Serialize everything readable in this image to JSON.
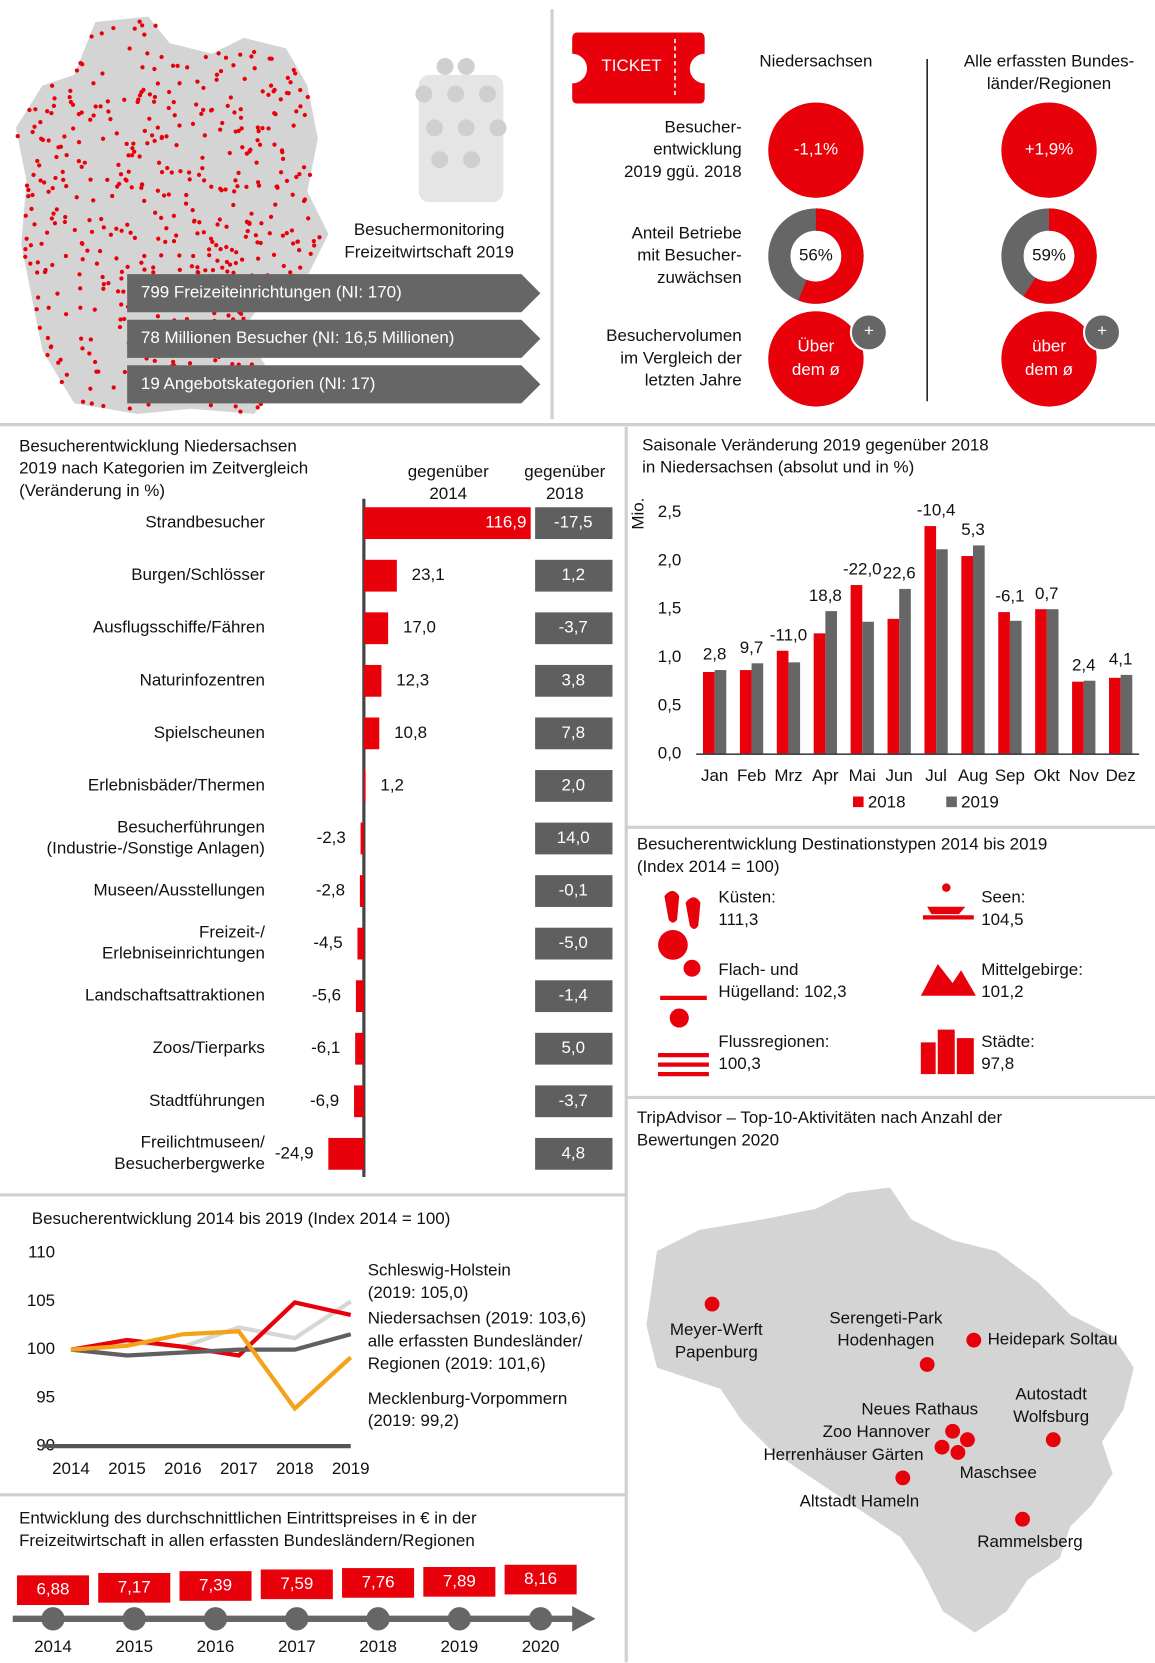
{
  "overview": {
    "title": [
      "Besuchermonitoring",
      "Freizeitwirtschaft 2019"
    ],
    "facts": [
      "799 Freizeiteinrichtungen (NI: 170)",
      "78 Millionen Besucher (NI: 16,5 Millionen)",
      "19 Angebotskategorien (NI: 17)"
    ]
  },
  "comparison": {
    "ticket": "TICKET",
    "columns": [
      [
        "Niedersachsen"
      ],
      [
        "Alle erfassten Bundes-",
        "länder/Regionen"
      ]
    ],
    "rows": [
      {
        "label": [
          "Besucher-",
          "entwicklung",
          "2019 ggü. 2018"
        ],
        "values": [
          "-1,1%",
          "+1,9%"
        ]
      },
      {
        "label": [
          "Anteil Betriebe",
          "mit Besucher-",
          "zuwächsen"
        ],
        "values": [
          56,
          59
        ],
        "value_labels": [
          "56%",
          "59%"
        ]
      },
      {
        "label": [
          "Besuchervolumen",
          "im Vergleich der",
          "letzten Jahre"
        ],
        "values": [
          [
            "Über",
            "dem ø"
          ],
          [
            "über",
            "dem ø"
          ]
        ],
        "badge": "+"
      }
    ]
  },
  "chart_data": [
    {
      "type": "barh",
      "title": [
        "Besucherentwicklung Niedersachsen",
        "2019 nach Kategorien im Zeitvergleich",
        "(Veränderung in %)"
      ],
      "categories": [
        "Strandbesucher",
        "Burgen/Schlösser",
        "Ausflugsschiffe/Fähren",
        "Naturinfozentren",
        "Spielscheunen",
        "Erlebnisbäder/Thermen",
        [
          "Besucherführungen",
          "(Industrie-/Sonstige Anlagen)"
        ],
        "Museen/Ausstellungen",
        [
          "Freizeit-/",
          "Erlebniseinrichtungen"
        ],
        "Landschaftsattraktionen",
        "Zoos/Tierparks",
        "Stadtführungen",
        [
          "Freilichtmuseen/",
          "Besucherbergwerke"
        ]
      ],
      "series": [
        {
          "name": [
            "gegenüber",
            "2014"
          ],
          "color": "#e8000b",
          "values": [
            116.9,
            23.1,
            17.0,
            12.3,
            10.8,
            1.2,
            -2.3,
            -2.8,
            -4.5,
            -5.6,
            -6.1,
            -6.9,
            -24.9
          ],
          "value_labels": [
            "116,9",
            "23,1",
            "17,0",
            "12,3",
            "10,8",
            "1,2",
            "-2,3",
            "-2,8",
            "-4,5",
            "-5,6",
            "-6,1",
            "-6,9",
            "-24,9"
          ]
        }
      ],
      "xlim": [
        -30,
        120
      ],
      "comparison": {
        "name": [
          "gegenüber",
          "2018"
        ],
        "color": "#5f5f5f",
        "labels": [
          "-17,5",
          "1,2",
          "-3,7",
          "3,8",
          "7,8",
          "2,0",
          "14,0",
          "-0,1",
          "-5,0",
          "-1,4",
          "5,0",
          "-3,7",
          "4,8"
        ]
      }
    },
    {
      "type": "groupedbar",
      "title": [
        "Saisonale Veränderung 2019 gegenüber 2018",
        "in Niedersachsen (absolut und in %)"
      ],
      "ylabel": "Mio.",
      "categories": [
        "Jan",
        "Feb",
        "Mrz",
        "Apr",
        "Mai",
        "Jun",
        "Jul",
        "Aug",
        "Sep",
        "Okt",
        "Nov",
        "Dez"
      ],
      "series": [
        {
          "name": "2018",
          "color": "#e8000b",
          "values": [
            0.85,
            0.87,
            1.07,
            1.25,
            1.75,
            1.4,
            2.36,
            2.05,
            1.47,
            1.5,
            0.75,
            0.79
          ]
        },
        {
          "name": "2019",
          "color": "#666666",
          "values": [
            0.87,
            0.94,
            0.95,
            1.48,
            1.37,
            1.71,
            2.12,
            2.16,
            1.38,
            1.5,
            0.76,
            0.82
          ]
        }
      ],
      "annotations": [
        "2,8",
        "9,7",
        "-11,0",
        "18,8",
        "-22,0",
        "22,6",
        "-10,4",
        "5,3",
        "-6,1",
        "0,7",
        "2,4",
        "4,1"
      ],
      "ylim": [
        0,
        2.5
      ],
      "yticks": [
        {
          "value": 0,
          "label": "0,0"
        },
        {
          "value": 0.5,
          "label": "0,5"
        },
        {
          "value": 1,
          "label": "1,0"
        },
        {
          "value": 1.5,
          "label": "1,5"
        },
        {
          "value": 2,
          "label": "2,0"
        },
        {
          "value": 2.5,
          "label": "2,5"
        }
      ],
      "legend": "bottom"
    },
    {
      "type": "line",
      "title": "Besucherentwicklung 2014 bis 2019 (Index 2014 = 100)",
      "x": [
        2014,
        2015,
        2016,
        2017,
        2018,
        2019
      ],
      "xlim": [
        2014,
        2019
      ],
      "xticks": [
        2014,
        2015,
        2016,
        2017,
        2018,
        2019
      ],
      "ylim": [
        90,
        110
      ],
      "yticks": [
        90,
        95,
        100,
        105,
        110
      ],
      "grid": false,
      "series": [
        {
          "name": [
            "Schleswig-Holstein",
            "(2019: 105,0)"
          ],
          "color": "#d6d6d6",
          "values": [
            100,
            100.8,
            100.3,
            102.3,
            101.2,
            105.0
          ]
        },
        {
          "name": [
            "Niedersachsen (2019: 103,6)"
          ],
          "color": "#e8000b",
          "values": [
            100,
            101.0,
            100.3,
            99.4,
            104.9,
            103.6
          ]
        },
        {
          "name": [
            "alle erfassten Bundesländer/",
            "Regionen (2019: 101,6)"
          ],
          "color": "#606060",
          "values": [
            100,
            99.4,
            99.7,
            100.0,
            100.0,
            101.6
          ]
        },
        {
          "name": [
            "Mecklenburg-Vorpommern",
            "(2019: 99,2)"
          ],
          "color": "#f5a21b",
          "values": [
            100,
            100.4,
            101.6,
            101.9,
            93.9,
            99.2
          ]
        }
      ]
    }
  ],
  "destinations": {
    "title": [
      "Besucherentwicklung Destinationstypen 2014 bis 2019",
      "(Index 2014 = 100)"
    ],
    "items": [
      {
        "label": "Küsten:",
        "value": "111,3"
      },
      {
        "label": "Seen:",
        "value": "104,5"
      },
      {
        "label": "Flach- und",
        "value": "Hügelland: 102,3"
      },
      {
        "label": "Mittelgebirge:",
        "value": "101,2"
      },
      {
        "label": "Flussregionen:",
        "value": "100,3"
      },
      {
        "label": "Städte:",
        "value": "97,8"
      }
    ]
  },
  "tripadvisor": {
    "title": [
      "TripAdvisor – Top-10-Aktivitäten nach Anzahl der",
      "Bewertungen 2020"
    ],
    "places": [
      [
        "Meyer-Werft",
        "Papenburg"
      ],
      [
        "Serengeti-Park",
        "Hodenhagen"
      ],
      [
        "Heidepark Soltau"
      ],
      [
        "Autostadt",
        "Wolfsburg"
      ],
      [
        "Neues Rathaus"
      ],
      [
        "Zoo Hannover"
      ],
      [
        "Herrenhäuser Gärten"
      ],
      [
        "Maschsee"
      ],
      [
        "Altstadt Hameln"
      ],
      [
        "Rammelsberg"
      ]
    ]
  },
  "prices": {
    "title": [
      "Entwicklung des durchschnittlichen Eintrittspreises in € in der",
      "Freizeitwirtschaft in allen erfassten Bundesländern/Regionen"
    ],
    "x": [
      2014,
      2015,
      2016,
      2017,
      2018,
      2019,
      2020
    ],
    "values": [
      6.88,
      7.17,
      7.39,
      7.59,
      7.76,
      7.89,
      8.16
    ],
    "value_labels": [
      "6,88",
      "7,17",
      "7,39",
      "7,59",
      "7,76",
      "7,89",
      "8,16"
    ]
  }
}
